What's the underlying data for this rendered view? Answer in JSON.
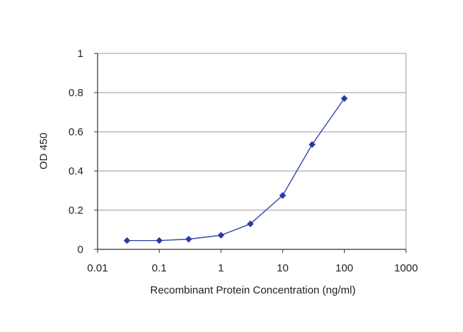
{
  "chart_data": {
    "type": "line",
    "title": "",
    "xlabel": "Recombinant Protein Concentration (ng/ml)",
    "ylabel": "OD 450",
    "x_scale": "log",
    "xlim": [
      0.01,
      1000
    ],
    "ylim": [
      0,
      1
    ],
    "x_ticks": [
      0.01,
      0.1,
      1,
      10,
      100,
      1000
    ],
    "x_tick_labels": [
      "0.01",
      "0.1",
      "1",
      "10",
      "100",
      "1000"
    ],
    "y_ticks": [
      0,
      0.2,
      0.4,
      0.6,
      0.8,
      1
    ],
    "y_tick_labels": [
      "0",
      "0.2",
      "0.4",
      "0.6",
      "0.8",
      "1"
    ],
    "grid": "horizontal",
    "legend": "none",
    "series": [
      {
        "color": "#2a3aa8",
        "marker": "diamond",
        "x": [
          0.03,
          0.1,
          0.3,
          1,
          3,
          10,
          30,
          100
        ],
        "y": [
          0.045,
          0.045,
          0.052,
          0.072,
          0.13,
          0.275,
          0.535,
          0.77
        ]
      }
    ]
  }
}
